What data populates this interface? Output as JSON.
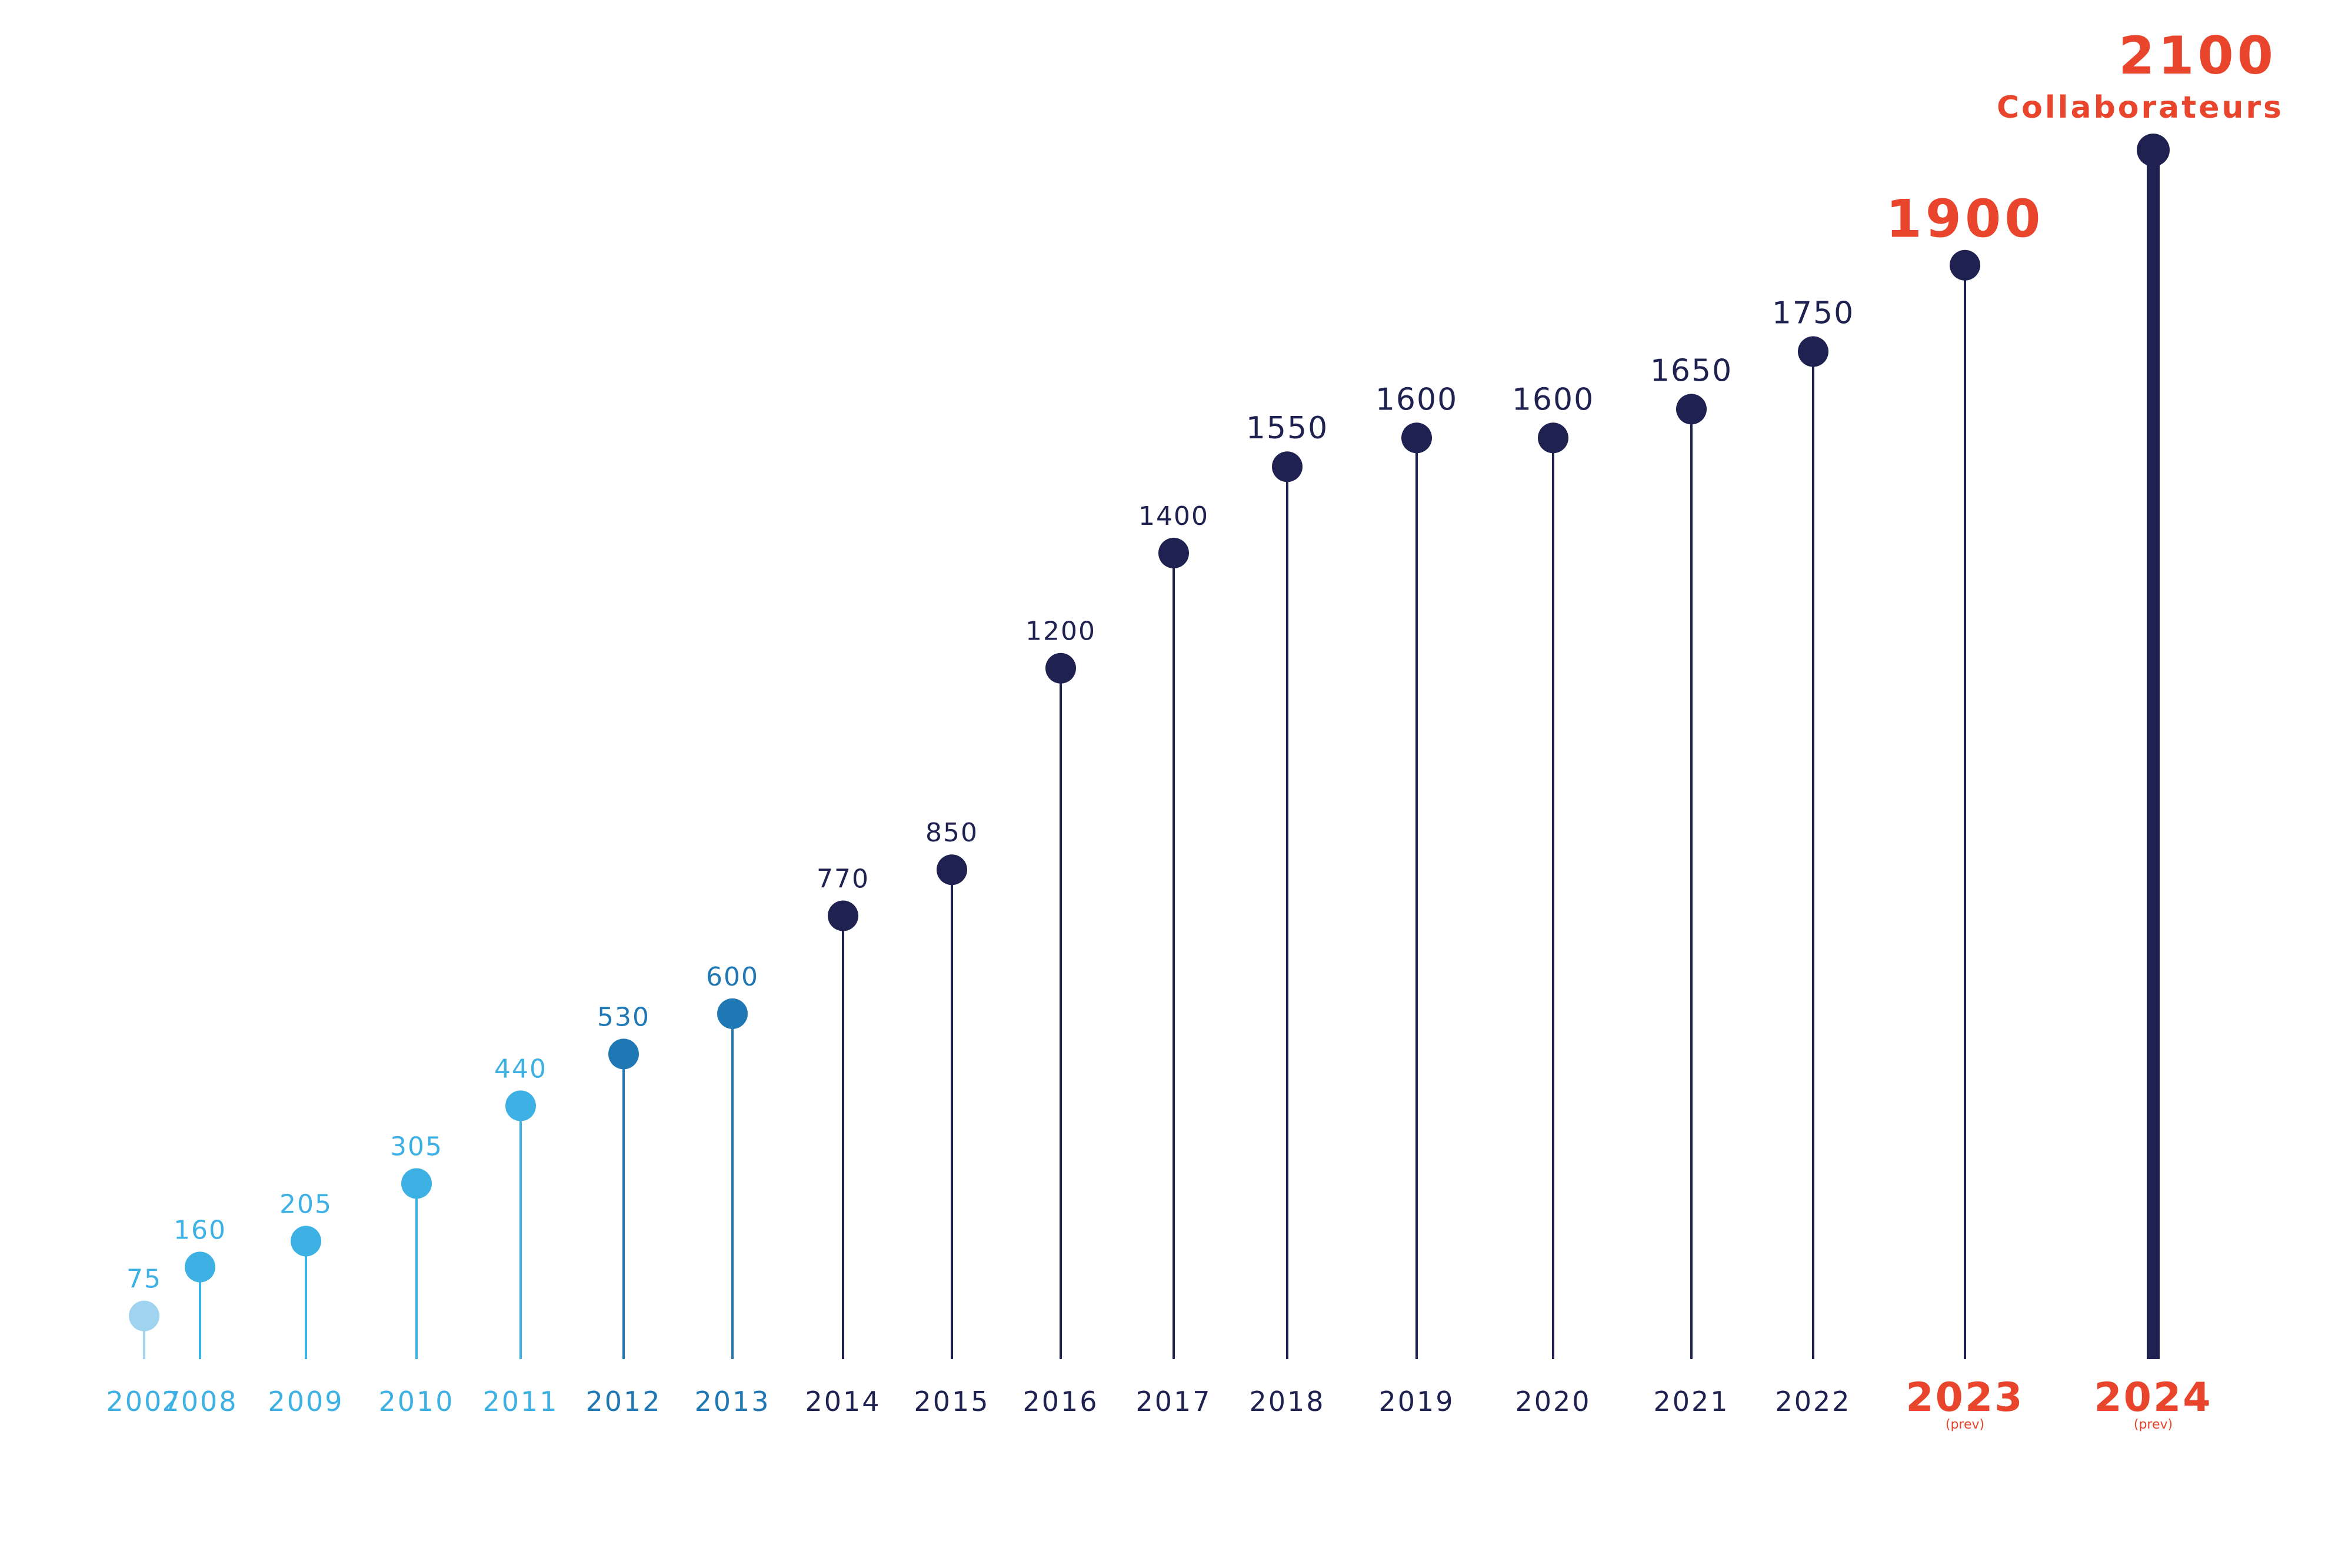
{
  "chart_data": {
    "type": "lollipop",
    "categories": [
      "2007",
      "2008",
      "2009",
      "2010",
      "2011",
      "2012",
      "2013",
      "2014",
      "2015",
      "2016",
      "2017",
      "2018",
      "2019",
      "2020",
      "2021",
      "2022",
      "2023",
      "2024"
    ],
    "values": [
      75,
      160,
      205,
      305,
      440,
      530,
      600,
      770,
      850,
      1200,
      1400,
      1550,
      1600,
      1600,
      1650,
      1750,
      1900,
      2100
    ],
    "value_labels": [
      "75",
      "160",
      "205",
      "305",
      "440",
      "530",
      "600",
      "770",
      "850",
      "1200",
      "1400",
      "1550",
      "1600",
      "1600",
      "1650",
      "1750",
      "1900",
      "2100"
    ],
    "sublabels": [
      "",
      "",
      "",
      "",
      "",
      "",
      "",
      "",
      "",
      "",
      "",
      "",
      "",
      "",
      "",
      "",
      "(prev)",
      "(prev)"
    ],
    "annotation": "Collaborateurs",
    "colors": [
      "#9fd3ef",
      "#3db1e3",
      "#3db1e3",
      "#3db1e3",
      "#3db1e3",
      "#1f77b4",
      "#1f77b4",
      "#1f2150",
      "#1f2150",
      "#1f2150",
      "#1f2150",
      "#1f2150",
      "#1f2150",
      "#1f2150",
      "#1f2150",
      "#1f2150",
      "#1f2150",
      "#1f2150"
    ],
    "label_colors": [
      "#3db1e3",
      "#3db1e3",
      "#3db1e3",
      "#3db1e3",
      "#3db1e3",
      "#1f77b4",
      "#1f77b4",
      "#1f2150",
      "#1f2150",
      "#1f2150",
      "#1f2150",
      "#1f2150",
      "#1f2150",
      "#1f2150",
      "#1f2150",
      "#1f2150",
      "#e8452c",
      "#e8452c"
    ],
    "ylim": [
      0,
      2100
    ],
    "grid": false,
    "legend": "none"
  }
}
